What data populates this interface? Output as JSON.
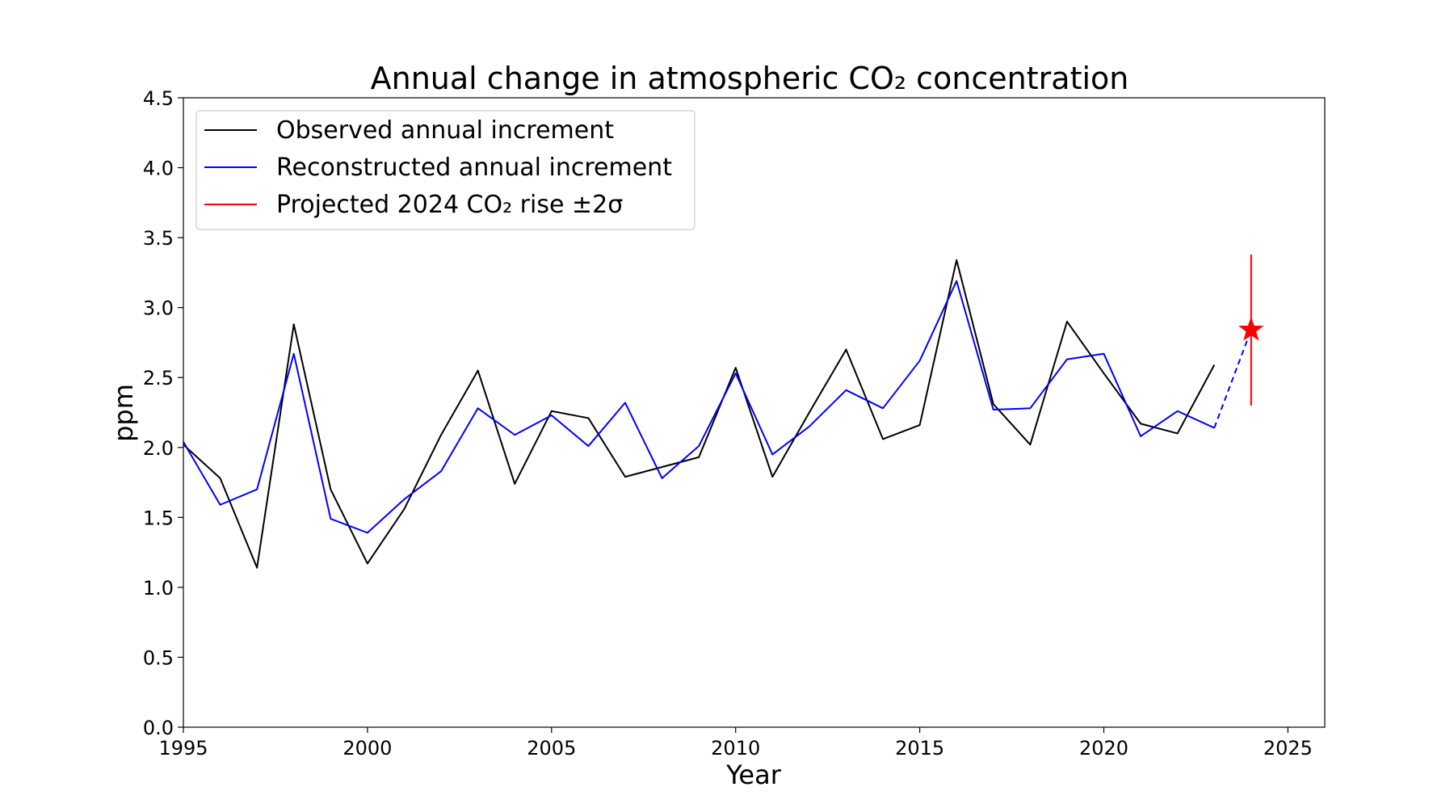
{
  "chart_data": {
    "type": "line",
    "title": "Annual change in atmospheric CO₂ concentration",
    "xlabel": "Year",
    "ylabel": "ppm",
    "xlim": [
      1995,
      2026
    ],
    "ylim": [
      0.0,
      4.5
    ],
    "xticks": [
      1995,
      2000,
      2005,
      2010,
      2015,
      2020,
      2025
    ],
    "yticks": [
      "0.0",
      "0.5",
      "1.0",
      "1.5",
      "2.0",
      "2.5",
      "3.0",
      "3.5",
      "4.0",
      "4.5"
    ],
    "grid": false,
    "legend_position": "top-left",
    "series": [
      {
        "name": "Observed annual increment",
        "color": "#000000",
        "x": [
          1995,
          1996,
          1997,
          1998,
          1999,
          2000,
          2001,
          2002,
          2003,
          2004,
          2005,
          2006,
          2007,
          2008,
          2009,
          2010,
          2011,
          2012,
          2013,
          2014,
          2015,
          2016,
          2017,
          2018,
          2019,
          2020,
          2021,
          2022,
          2023
        ],
        "y": [
          2.02,
          1.78,
          1.14,
          2.88,
          1.7,
          1.17,
          1.56,
          2.09,
          2.55,
          1.74,
          2.26,
          2.21,
          1.79,
          1.86,
          1.93,
          2.57,
          1.79,
          2.25,
          2.7,
          2.06,
          2.16,
          3.34,
          2.31,
          2.02,
          2.9,
          2.53,
          2.17,
          2.1,
          2.59
        ]
      },
      {
        "name": "Reconstructed annual increment",
        "color": "#0000ff",
        "x": [
          1995,
          1996,
          1997,
          1998,
          1999,
          2000,
          2001,
          2002,
          2003,
          2004,
          2005,
          2006,
          2007,
          2008,
          2009,
          2010,
          2011,
          2012,
          2013,
          2014,
          2015,
          2016,
          2017,
          2018,
          2019,
          2020,
          2021,
          2022,
          2023
        ],
        "y": [
          2.04,
          1.59,
          1.7,
          2.67,
          1.49,
          1.39,
          1.63,
          1.83,
          2.28,
          2.09,
          2.23,
          2.01,
          2.32,
          1.78,
          2.01,
          2.53,
          1.95,
          2.15,
          2.41,
          2.28,
          2.62,
          3.19,
          2.27,
          2.28,
          2.63,
          2.67,
          2.08,
          2.26,
          2.14
        ]
      },
      {
        "name": "Projected 2024 CO₂ rise ±2σ",
        "color": "#ff0000",
        "x": [
          2024
        ],
        "y": [
          2.84
        ],
        "error_low": 2.3,
        "error_high": 3.38
      }
    ],
    "projection_link": {
      "color": "#0000ff",
      "style": "dashed",
      "x": [
        2023,
        2024
      ],
      "y": [
        2.14,
        2.84
      ]
    }
  }
}
